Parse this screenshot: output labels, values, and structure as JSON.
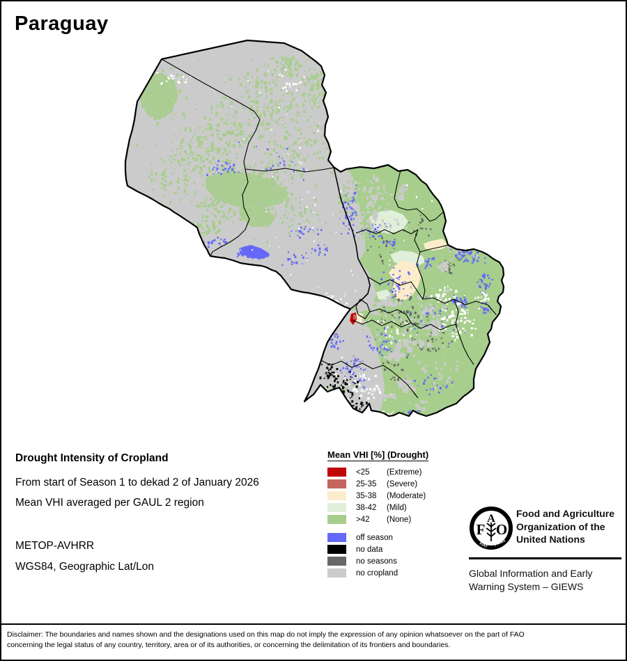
{
  "title": "Paraguay",
  "info": {
    "heading": "Drought Intensity of Cropland",
    "subtitle1": "From start of Season 1 to dekad 2 of January 2026",
    "subtitle2": "Mean VHI averaged per GAUL 2 region",
    "sensor": "METOP-AVHRR",
    "projection": "WGS84, Geographic Lat/Lon"
  },
  "legend": {
    "title": "Mean VHI [%] (Drought)",
    "items": [
      {
        "range": "<25",
        "severity": "(Extreme)",
        "color": "#c00606"
      },
      {
        "range": "25-35",
        "severity": "(Severe)",
        "color": "#c4655f"
      },
      {
        "range": "35-38",
        "severity": "(Moderate)",
        "color": "#fdeccb"
      },
      {
        "range": "38-42",
        "severity": "(Mild)",
        "color": "#e0efda"
      },
      {
        "range": ">42",
        "severity": "(None)",
        "color": "#a7ce8c"
      }
    ],
    "extra": [
      {
        "label": "off season",
        "color": "#6569f7"
      },
      {
        "label": "no data",
        "color": "#000000"
      },
      {
        "label": "no seasons",
        "color": "#686868"
      },
      {
        "label": "no cropland",
        "color": "#cbcbcb"
      }
    ]
  },
  "map": {
    "country": "Paraguay",
    "boundary_color": "#000000",
    "background_color": "#ffffff"
  },
  "footer": {
    "fao_logo": {
      "letter_f": "F",
      "letter_a": "A",
      "letter_o": "O",
      "motto_left": "FIAT",
      "motto_right": "PANIS"
    },
    "org_line1": "Food and Agriculture",
    "org_line2": "Organization of the",
    "org_line3": "United Nations",
    "giews_line1": "Global Information and Early",
    "giews_line2": "Warning System – GIEWS"
  },
  "disclaimer_line1": "Disclaimer: The boundaries and names shown and the designations used on this map do not imply the expression of any opinion whatsoever on the part of FAO",
  "disclaimer_line2": "concerning the legal status of any country, territory, area or of its authorities, or concerning the delimitation of its frontiers and boundaries."
}
